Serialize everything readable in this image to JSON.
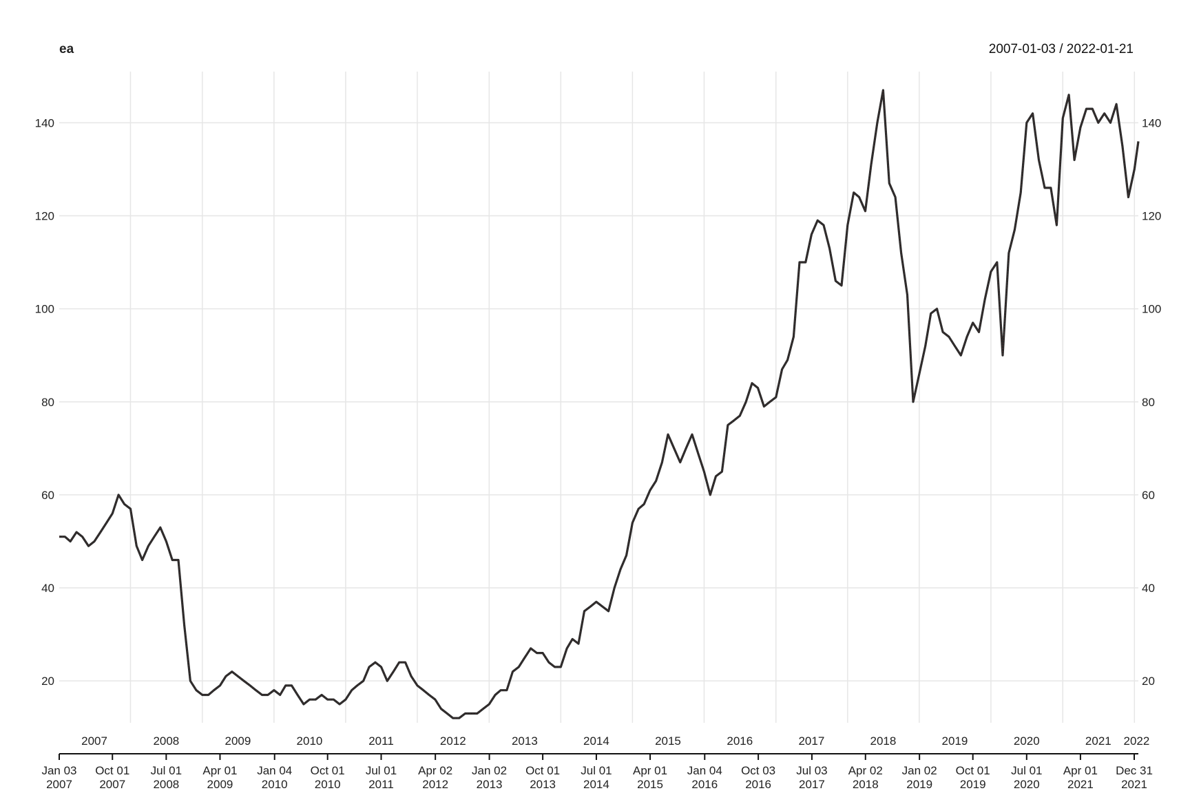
{
  "chart_data": {
    "type": "line",
    "title": "ea",
    "date_range": "2007-01-03 / 2022-01-21",
    "xlabel": "",
    "ylabel": "",
    "x_range": [
      "2007-01-03",
      "2022-01-21"
    ],
    "ylim": [
      11,
      151
    ],
    "grid": true,
    "y_ticks": [
      {
        "value": 20,
        "label": "20"
      },
      {
        "value": 40,
        "label": "40"
      },
      {
        "value": 60,
        "label": "60"
      },
      {
        "value": 80,
        "label": "80"
      },
      {
        "value": 100,
        "label": "100"
      },
      {
        "value": 120,
        "label": "120"
      },
      {
        "value": 140,
        "label": "140"
      }
    ],
    "year_labels": [
      {
        "date": "2007-07-01",
        "label": "2007"
      },
      {
        "date": "2008-07-01",
        "label": "2008"
      },
      {
        "date": "2009-07-01",
        "label": "2009"
      },
      {
        "date": "2010-07-01",
        "label": "2010"
      },
      {
        "date": "2011-07-01",
        "label": "2011"
      },
      {
        "date": "2012-07-01",
        "label": "2012"
      },
      {
        "date": "2013-07-01",
        "label": "2013"
      },
      {
        "date": "2014-07-01",
        "label": "2014"
      },
      {
        "date": "2015-07-01",
        "label": "2015"
      },
      {
        "date": "2016-07-01",
        "label": "2016"
      },
      {
        "date": "2017-07-01",
        "label": "2017"
      },
      {
        "date": "2018-07-01",
        "label": "2018"
      },
      {
        "date": "2019-07-01",
        "label": "2019"
      },
      {
        "date": "2020-07-01",
        "label": "2020"
      },
      {
        "date": "2021-07-01",
        "label": "2021"
      },
      {
        "date": "2022-01-12",
        "label": "2022"
      }
    ],
    "year_gridlines": [
      "2008-01-01",
      "2009-01-01",
      "2010-01-01",
      "2011-01-01",
      "2012-01-01",
      "2013-01-01",
      "2014-01-01",
      "2015-01-01",
      "2016-01-01",
      "2017-01-01",
      "2018-01-01",
      "2019-01-01",
      "2020-01-01",
      "2021-01-01",
      "2022-01-01"
    ],
    "date_ticks": [
      {
        "date": "2007-01-03",
        "line1": "Jan 03",
        "line2": "2007"
      },
      {
        "date": "2007-10-01",
        "line1": "Oct 01",
        "line2": "2007"
      },
      {
        "date": "2008-07-01",
        "line1": "Jul 01",
        "line2": "2008"
      },
      {
        "date": "2009-04-01",
        "line1": "Apr 01",
        "line2": "2009"
      },
      {
        "date": "2010-01-04",
        "line1": "Jan 04",
        "line2": "2010"
      },
      {
        "date": "2010-10-01",
        "line1": "Oct 01",
        "line2": "2010"
      },
      {
        "date": "2011-07-01",
        "line1": "Jul 01",
        "line2": "2011"
      },
      {
        "date": "2012-04-02",
        "line1": "Apr 02",
        "line2": "2012"
      },
      {
        "date": "2013-01-02",
        "line1": "Jan 02",
        "line2": "2013"
      },
      {
        "date": "2013-10-01",
        "line1": "Oct 01",
        "line2": "2013"
      },
      {
        "date": "2014-07-01",
        "line1": "Jul 01",
        "line2": "2014"
      },
      {
        "date": "2015-04-01",
        "line1": "Apr 01",
        "line2": "2015"
      },
      {
        "date": "2016-01-04",
        "line1": "Jan 04",
        "line2": "2016"
      },
      {
        "date": "2016-10-03",
        "line1": "Oct 03",
        "line2": "2016"
      },
      {
        "date": "2017-07-03",
        "line1": "Jul 03",
        "line2": "2017"
      },
      {
        "date": "2018-04-02",
        "line1": "Apr 02",
        "line2": "2018"
      },
      {
        "date": "2019-01-02",
        "line1": "Jan 02",
        "line2": "2019"
      },
      {
        "date": "2019-10-01",
        "line1": "Oct 01",
        "line2": "2019"
      },
      {
        "date": "2020-07-01",
        "line1": "Jul 01",
        "line2": "2020"
      },
      {
        "date": "2021-04-01",
        "line1": "Apr 01",
        "line2": "2021"
      },
      {
        "date": "2021-12-31",
        "line1": "Dec 31",
        "line2": "2021"
      }
    ],
    "series": [
      {
        "color": "#2b2b2b",
        "points": [
          [
            "2007-01-03",
            51
          ],
          [
            "2007-02-01",
            51
          ],
          [
            "2007-03-01",
            50
          ],
          [
            "2007-04-01",
            52
          ],
          [
            "2007-05-01",
            51
          ],
          [
            "2007-06-01",
            49
          ],
          [
            "2007-07-01",
            50
          ],
          [
            "2007-08-01",
            52
          ],
          [
            "2007-09-01",
            54
          ],
          [
            "2007-10-01",
            56
          ],
          [
            "2007-11-01",
            60
          ],
          [
            "2007-12-01",
            58
          ],
          [
            "2008-01-01",
            57
          ],
          [
            "2008-02-01",
            49
          ],
          [
            "2008-03-01",
            46
          ],
          [
            "2008-04-01",
            49
          ],
          [
            "2008-05-01",
            51
          ],
          [
            "2008-06-01",
            53
          ],
          [
            "2008-07-01",
            50
          ],
          [
            "2008-08-01",
            46
          ],
          [
            "2008-09-01",
            46
          ],
          [
            "2008-10-01",
            32
          ],
          [
            "2008-11-01",
            20
          ],
          [
            "2008-12-01",
            18
          ],
          [
            "2009-01-01",
            17
          ],
          [
            "2009-02-01",
            17
          ],
          [
            "2009-03-01",
            18
          ],
          [
            "2009-04-01",
            19
          ],
          [
            "2009-05-01",
            21
          ],
          [
            "2009-06-01",
            22
          ],
          [
            "2009-07-01",
            21
          ],
          [
            "2009-08-01",
            20
          ],
          [
            "2009-09-01",
            19
          ],
          [
            "2009-10-01",
            18
          ],
          [
            "2009-11-01",
            17
          ],
          [
            "2009-12-01",
            17
          ],
          [
            "2010-01-01",
            18
          ],
          [
            "2010-02-01",
            17
          ],
          [
            "2010-03-01",
            19
          ],
          [
            "2010-04-01",
            19
          ],
          [
            "2010-05-01",
            17
          ],
          [
            "2010-06-01",
            15
          ],
          [
            "2010-07-01",
            16
          ],
          [
            "2010-08-01",
            16
          ],
          [
            "2010-09-01",
            17
          ],
          [
            "2010-10-01",
            16
          ],
          [
            "2010-11-01",
            16
          ],
          [
            "2010-12-01",
            15
          ],
          [
            "2011-01-01",
            16
          ],
          [
            "2011-02-01",
            18
          ],
          [
            "2011-03-01",
            19
          ],
          [
            "2011-04-01",
            20
          ],
          [
            "2011-05-01",
            23
          ],
          [
            "2011-06-01",
            24
          ],
          [
            "2011-07-01",
            23
          ],
          [
            "2011-08-01",
            20
          ],
          [
            "2011-09-01",
            22
          ],
          [
            "2011-10-01",
            24
          ],
          [
            "2011-11-01",
            24
          ],
          [
            "2011-12-01",
            21
          ],
          [
            "2012-01-01",
            19
          ],
          [
            "2012-02-01",
            18
          ],
          [
            "2012-03-01",
            17
          ],
          [
            "2012-04-01",
            16
          ],
          [
            "2012-05-01",
            14
          ],
          [
            "2012-06-01",
            13
          ],
          [
            "2012-07-01",
            12
          ],
          [
            "2012-08-01",
            12
          ],
          [
            "2012-09-01",
            13
          ],
          [
            "2012-10-01",
            13
          ],
          [
            "2012-11-01",
            13
          ],
          [
            "2012-12-01",
            14
          ],
          [
            "2013-01-01",
            15
          ],
          [
            "2013-02-01",
            17
          ],
          [
            "2013-03-01",
            18
          ],
          [
            "2013-04-01",
            18
          ],
          [
            "2013-05-01",
            22
          ],
          [
            "2013-06-01",
            23
          ],
          [
            "2013-07-01",
            25
          ],
          [
            "2013-08-01",
            27
          ],
          [
            "2013-09-01",
            26
          ],
          [
            "2013-10-01",
            26
          ],
          [
            "2013-11-01",
            24
          ],
          [
            "2013-12-01",
            23
          ],
          [
            "2014-01-01",
            23
          ],
          [
            "2014-02-01",
            27
          ],
          [
            "2014-03-01",
            29
          ],
          [
            "2014-04-01",
            28
          ],
          [
            "2014-05-01",
            35
          ],
          [
            "2014-06-01",
            36
          ],
          [
            "2014-07-01",
            37
          ],
          [
            "2014-08-01",
            36
          ],
          [
            "2014-09-01",
            35
          ],
          [
            "2014-10-01",
            40
          ],
          [
            "2014-11-01",
            44
          ],
          [
            "2014-12-01",
            47
          ],
          [
            "2015-01-01",
            54
          ],
          [
            "2015-02-01",
            57
          ],
          [
            "2015-03-01",
            58
          ],
          [
            "2015-04-01",
            61
          ],
          [
            "2015-05-01",
            63
          ],
          [
            "2015-06-01",
            67
          ],
          [
            "2015-07-01",
            73
          ],
          [
            "2015-08-01",
            70
          ],
          [
            "2015-09-01",
            67
          ],
          [
            "2015-10-01",
            70
          ],
          [
            "2015-11-01",
            73
          ],
          [
            "2015-12-01",
            69
          ],
          [
            "2016-01-01",
            65
          ],
          [
            "2016-02-01",
            60
          ],
          [
            "2016-03-01",
            64
          ],
          [
            "2016-04-01",
            65
          ],
          [
            "2016-05-01",
            75
          ],
          [
            "2016-06-01",
            76
          ],
          [
            "2016-07-01",
            77
          ],
          [
            "2016-08-01",
            80
          ],
          [
            "2016-09-01",
            84
          ],
          [
            "2016-10-01",
            83
          ],
          [
            "2016-11-01",
            79
          ],
          [
            "2016-12-01",
            80
          ],
          [
            "2017-01-01",
            81
          ],
          [
            "2017-02-01",
            87
          ],
          [
            "2017-03-01",
            89
          ],
          [
            "2017-04-01",
            94
          ],
          [
            "2017-05-01",
            110
          ],
          [
            "2017-06-01",
            110
          ],
          [
            "2017-07-01",
            116
          ],
          [
            "2017-08-01",
            119
          ],
          [
            "2017-09-01",
            118
          ],
          [
            "2017-10-01",
            113
          ],
          [
            "2017-11-01",
            106
          ],
          [
            "2017-12-01",
            105
          ],
          [
            "2018-01-01",
            118
          ],
          [
            "2018-02-01",
            125
          ],
          [
            "2018-03-01",
            124
          ],
          [
            "2018-04-01",
            121
          ],
          [
            "2018-05-01",
            131
          ],
          [
            "2018-06-01",
            140
          ],
          [
            "2018-07-01",
            147
          ],
          [
            "2018-08-01",
            127
          ],
          [
            "2018-09-01",
            124
          ],
          [
            "2018-10-01",
            112
          ],
          [
            "2018-11-01",
            103
          ],
          [
            "2018-12-01",
            80
          ],
          [
            "2019-01-01",
            86
          ],
          [
            "2019-02-01",
            92
          ],
          [
            "2019-03-01",
            99
          ],
          [
            "2019-04-01",
            100
          ],
          [
            "2019-05-01",
            95
          ],
          [
            "2019-06-01",
            94
          ],
          [
            "2019-07-01",
            92
          ],
          [
            "2019-08-01",
            90
          ],
          [
            "2019-09-01",
            94
          ],
          [
            "2019-10-01",
            97
          ],
          [
            "2019-11-01",
            95
          ],
          [
            "2019-12-01",
            102
          ],
          [
            "2020-01-01",
            108
          ],
          [
            "2020-02-01",
            110
          ],
          [
            "2020-03-01",
            90
          ],
          [
            "2020-04-01",
            112
          ],
          [
            "2020-05-01",
            117
          ],
          [
            "2020-06-01",
            125
          ],
          [
            "2020-07-01",
            140
          ],
          [
            "2020-08-01",
            142
          ],
          [
            "2020-09-01",
            132
          ],
          [
            "2020-10-01",
            126
          ],
          [
            "2020-11-01",
            126
          ],
          [
            "2020-12-01",
            118
          ],
          [
            "2021-01-01",
            141
          ],
          [
            "2021-02-01",
            146
          ],
          [
            "2021-03-01",
            132
          ],
          [
            "2021-04-01",
            139
          ],
          [
            "2021-05-01",
            143
          ],
          [
            "2021-06-01",
            143
          ],
          [
            "2021-07-01",
            140
          ],
          [
            "2021-08-01",
            142
          ],
          [
            "2021-09-01",
            140
          ],
          [
            "2021-10-01",
            144
          ],
          [
            "2021-11-01",
            135
          ],
          [
            "2021-12-01",
            124
          ],
          [
            "2022-01-01",
            130
          ],
          [
            "2022-01-21",
            136
          ]
        ]
      }
    ]
  }
}
